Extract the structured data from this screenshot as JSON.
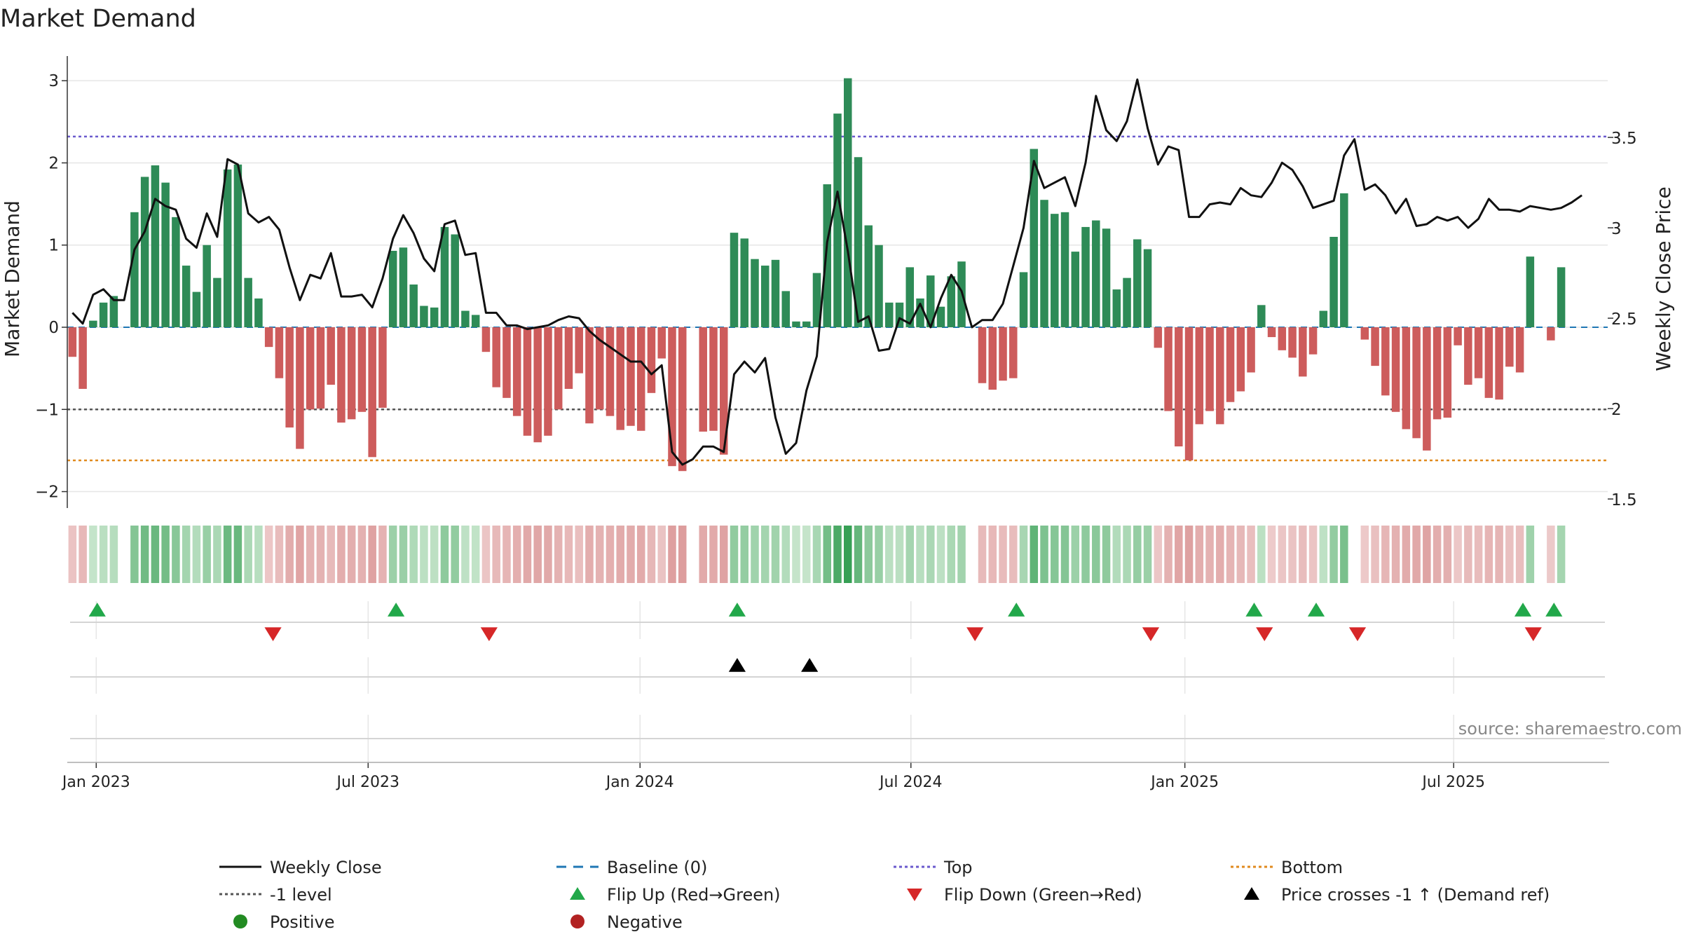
{
  "chart_data": {
    "type": "bar",
    "title": "Market Demand",
    "ylabel_left": "Market Demand",
    "ylabel_right": "Weekly Close Price",
    "source": "source: sharemaestro.com",
    "left_axis": {
      "ylim": [
        -2.2,
        3.3
      ],
      "ticks": [
        3,
        2,
        1,
        0,
        -1,
        -2
      ],
      "tick_labels": [
        "3",
        "2",
        "1",
        "0",
        "−1",
        "−2"
      ]
    },
    "right_axis": {
      "ylim": [
        1.45,
        3.95
      ],
      "ticks": [
        3.5,
        3,
        2.5,
        2,
        1.5
      ],
      "tick_labels": [
        "3.5",
        "3",
        "2.5",
        "2",
        "1.5"
      ]
    },
    "x_axis": {
      "start_week": 0,
      "end_week": 148,
      "ticks": [
        {
          "week": 2.3,
          "label": "Jan 2023"
        },
        {
          "week": 28.6,
          "label": "Jul 2023"
        },
        {
          "week": 54.9,
          "label": "Jan 2024"
        },
        {
          "week": 81.1,
          "label": "Jul 2024"
        },
        {
          "week": 107.6,
          "label": "Jan 2025"
        },
        {
          "week": 133.6,
          "label": "Jul 2025"
        }
      ]
    },
    "reference_lines": {
      "top": 2.32,
      "minus_one": -1,
      "bottom": -1.62
    },
    "demand": [
      -0.36,
      -0.75,
      0.08,
      0.3,
      0.38,
      0.0,
      1.4,
      1.83,
      1.97,
      1.76,
      1.34,
      0.75,
      0.43,
      1.0,
      0.6,
      1.92,
      1.98,
      0.6,
      0.35,
      -0.24,
      -0.62,
      -1.22,
      -1.48,
      -1.0,
      -0.99,
      -0.7,
      -1.16,
      -1.12,
      -1.03,
      -1.58,
      -0.98,
      0.93,
      0.97,
      0.52,
      0.26,
      0.24,
      1.22,
      1.13,
      0.2,
      0.15,
      -0.3,
      -0.73,
      -0.86,
      -1.08,
      -1.32,
      -1.4,
      -1.32,
      -1.0,
      -0.75,
      -0.56,
      -1.17,
      -1.0,
      -1.08,
      -1.25,
      -1.2,
      -1.26,
      -0.8,
      -0.38,
      -1.69,
      -1.75,
      0.0,
      -1.27,
      -1.26,
      -1.55,
      1.15,
      1.08,
      0.83,
      0.75,
      0.82,
      0.44,
      0.07,
      0.07,
      0.66,
      1.74,
      2.6,
      3.03,
      2.07,
      1.24,
      1.0,
      0.3,
      0.3,
      0.73,
      0.35,
      0.63,
      0.25,
      0.62,
      0.8,
      0.0,
      -0.68,
      -0.76,
      -0.65,
      -0.62,
      0.67,
      2.17,
      1.55,
      1.38,
      1.4,
      0.92,
      1.22,
      1.3,
      1.2,
      0.46,
      0.6,
      1.07,
      0.95,
      -0.25,
      -1.02,
      -1.45,
      -1.62,
      -1.18,
      -1.02,
      -1.18,
      -0.91,
      -0.78,
      -0.55,
      0.27,
      -0.12,
      -0.28,
      -0.37,
      -0.6,
      -0.33,
      0.2,
      1.1,
      1.63,
      0.0,
      -0.15,
      -0.47,
      -0.83,
      -1.03,
      -1.24,
      -1.35,
      -1.5,
      -1.12,
      -1.1,
      -0.22,
      -0.7,
      -0.62,
      -0.86,
      -0.88,
      -0.48,
      -0.55,
      0.86,
      0.0,
      -0.16,
      0.73
    ],
    "weekly_close": [
      2.53,
      2.47,
      2.63,
      2.66,
      2.6,
      2.6,
      2.88,
      2.98,
      3.16,
      3.12,
      3.1,
      2.94,
      2.89,
      3.08,
      2.95,
      3.38,
      3.35,
      3.08,
      3.03,
      3.06,
      2.99,
      2.78,
      2.6,
      2.74,
      2.72,
      2.86,
      2.62,
      2.62,
      2.63,
      2.56,
      2.72,
      2.94,
      3.07,
      2.97,
      2.83,
      2.76,
      3.02,
      3.04,
      2.85,
      2.86,
      2.53,
      2.53,
      2.46,
      2.46,
      2.44,
      2.45,
      2.46,
      2.49,
      2.51,
      2.5,
      2.43,
      2.38,
      2.34,
      2.3,
      2.26,
      2.26,
      2.19,
      2.24,
      1.76,
      1.69,
      1.72,
      1.79,
      1.79,
      1.76,
      2.19,
      2.26,
      2.2,
      2.28,
      1.95,
      1.75,
      1.81,
      2.1,
      2.29,
      2.92,
      3.2,
      2.87,
      2.48,
      2.51,
      2.32,
      2.33,
      2.5,
      2.47,
      2.58,
      2.45,
      2.61,
      2.74,
      2.65,
      2.45,
      2.49,
      2.49,
      2.58,
      2.79,
      3.0,
      3.37,
      3.22,
      3.25,
      3.28,
      3.12,
      3.36,
      3.73,
      3.54,
      3.48,
      3.59,
      3.82,
      3.55,
      3.35,
      3.45,
      3.43,
      3.06,
      3.06,
      3.13,
      3.14,
      3.13,
      3.22,
      3.18,
      3.17,
      3.25,
      3.36,
      3.32,
      3.23,
      3.11,
      3.13,
      3.15,
      3.4,
      3.49,
      3.21,
      3.24,
      3.18,
      3.08,
      3.16,
      3.01,
      3.02,
      3.06,
      3.04,
      3.06,
      3.0,
      3.05,
      3.16,
      3.1,
      3.1,
      3.09,
      3.12,
      3.11,
      3.1,
      3.11,
      3.14,
      3.18
    ],
    "flip_up_weeks": [
      2.4,
      31.3,
      64.3,
      91.3,
      114.3,
      120.3,
      140.3,
      143.3
    ],
    "flip_down_weeks": [
      19.4,
      40.3,
      87.3,
      104.3,
      115.3,
      124.3,
      141.3
    ],
    "price_cross_weeks": [
      64.3,
      71.3
    ],
    "legend": [
      {
        "label": "Weekly Close",
        "type": "solid"
      },
      {
        "label": "Baseline (0)",
        "type": "dashed"
      },
      {
        "label": "Top",
        "type": "dotted-purple"
      },
      {
        "label": "Bottom",
        "type": "dotted-orange"
      },
      {
        "label": "-1 level",
        "type": "dotted-gray"
      },
      {
        "label": "Flip Up (Red→Green)",
        "type": "tri-up-green"
      },
      {
        "label": "Flip Down (Green→Red)",
        "type": "tri-down-red"
      },
      {
        "label": "Price crosses -1 ↑ (Demand ref)",
        "type": "tri-up-black"
      },
      {
        "label": "Positive",
        "type": "dot-green"
      },
      {
        "label": "Negative",
        "type": "dot-red"
      }
    ],
    "colors": {
      "positive": "#2e8b57",
      "negative": "#cd5c5c",
      "price": "#111111",
      "baseline": "#1f77b4",
      "top": "#6a5acd",
      "bottom": "#e08a1e",
      "minus_one": "#555555",
      "flip_up": "#22a84a",
      "flip_down": "#d62728",
      "price_cross": "#000000",
      "legend_positive": "#228b22",
      "legend_negative": "#b22222",
      "grid": "#e6e6e6"
    }
  }
}
